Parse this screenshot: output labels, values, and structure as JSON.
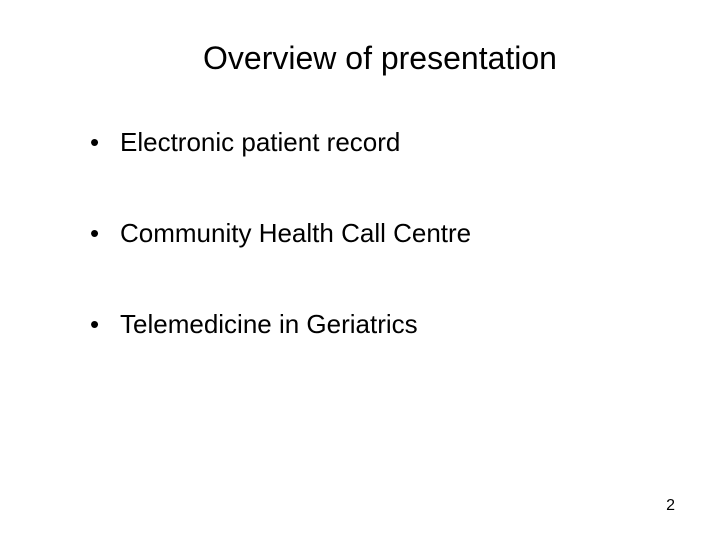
{
  "slide": {
    "title": "Overview of presentation",
    "bullets": [
      "Electronic patient record",
      "Community Health Call Centre",
      "Telemedicine in Geriatrics"
    ],
    "page_number": "2",
    "background_color": "#ffffff",
    "text_color": "#000000",
    "title_fontsize": 32,
    "bullet_fontsize": 26,
    "pagenum_fontsize": 16
  }
}
